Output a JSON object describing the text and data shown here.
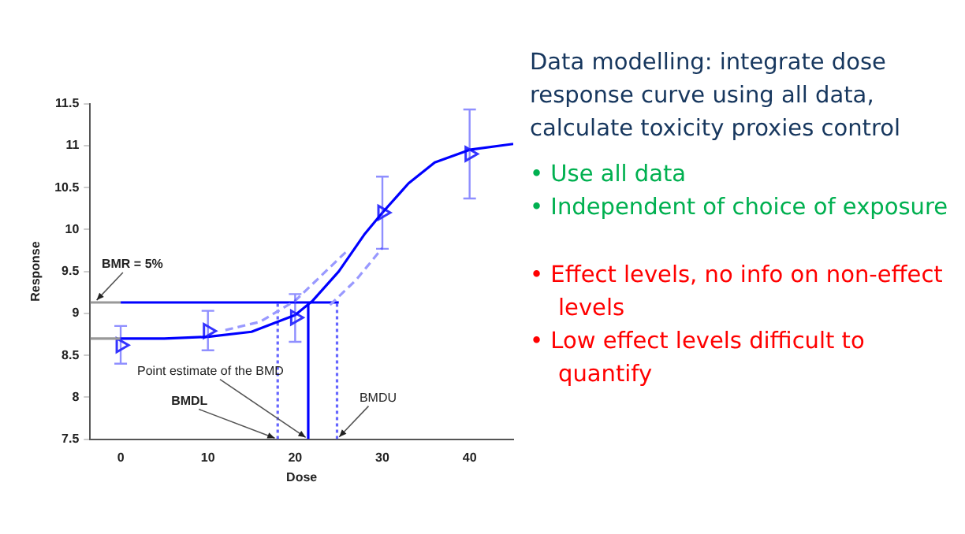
{
  "chart_data": [
    {
      "type": "scatter",
      "xlabel": "Dose",
      "ylabel": "Response",
      "xlim": [
        -3.5,
        45
      ],
      "xticks": [
        0,
        10,
        20,
        30,
        40
      ],
      "ylim": [
        7.5,
        11.5
      ],
      "yticks": [
        7.5,
        8,
        8.5,
        9,
        9.5,
        10,
        10.5,
        11,
        11.5
      ],
      "grid": false,
      "legend": false,
      "series": [
        {
          "type": "line",
          "color": "#9999ff",
          "line_style": "dashed",
          "marker": "none",
          "x": [
            12,
            16,
            20,
            23,
            26
          ],
          "values": [
            8.8,
            8.9,
            9.15,
            9.45,
            9.75
          ]
        },
        {
          "type": "line",
          "color": "#9999ff",
          "line_style": "dashed",
          "marker": "none",
          "x": [
            24,
            27,
            30
          ],
          "values": [
            9.1,
            9.4,
            9.78
          ]
        },
        {
          "type": "line",
          "color": "#0000ff",
          "line_style": "solid",
          "marker": "none",
          "x": [
            0,
            5,
            10,
            15,
            20,
            22,
            25,
            28,
            30,
            33,
            36,
            40,
            45
          ],
          "values": [
            8.7,
            8.7,
            8.72,
            8.78,
            8.98,
            9.15,
            9.5,
            9.95,
            10.2,
            10.55,
            10.8,
            10.95,
            11.02
          ]
        },
        {
          "type": "line",
          "color": "#999999",
          "line_style": "solid",
          "marker": "none",
          "x": [
            -3.5,
            0
          ],
          "values": [
            8.7,
            8.7
          ]
        },
        {
          "type": "line",
          "color": "#999999",
          "line_style": "solid",
          "marker": "none",
          "x": [
            -3.5,
            0
          ],
          "values": [
            9.13,
            9.13
          ]
        },
        {
          "type": "line",
          "color": "#0000ff",
          "line_style": "solid",
          "marker": "none",
          "x": [
            0,
            25
          ],
          "values": [
            9.13,
            9.13
          ]
        },
        {
          "type": "line",
          "color": "#0000ff",
          "line_style": "solid",
          "marker": "none",
          "x": [
            21.5,
            21.5
          ],
          "values": [
            7.5,
            9.13
          ]
        },
        {
          "type": "line",
          "color": "#6666ff",
          "line_style": "dotted",
          "marker": "none",
          "x": [
            18,
            18
          ],
          "values": [
            7.5,
            9.13
          ]
        },
        {
          "type": "line",
          "color": "#6666ff",
          "line_style": "dotted",
          "marker": "none",
          "x": [
            24.8,
            24.8
          ],
          "values": [
            7.5,
            9.13
          ]
        },
        {
          "type": "scatter",
          "color": "#3333ff",
          "marker": "triangle",
          "x": [
            0,
            10,
            20,
            30,
            40
          ],
          "values": [
            8.62,
            8.79,
            8.95,
            10.2,
            10.9
          ],
          "errors": [
            [
              8.4,
              8.85
            ],
            [
              8.56,
              9.03
            ],
            [
              8.66,
              9.23
            ],
            [
              9.77,
              10.63
            ],
            [
              10.37,
              11.43
            ]
          ]
        }
      ],
      "annotations": [
        {
          "text": "BMR = 5%",
          "x": -3,
          "y": 9.13
        },
        {
          "text": "Point estimate of the BMD",
          "x": 21.5,
          "y": 7.5
        },
        {
          "text": "BMDL",
          "x": 18,
          "y": 7.5
        },
        {
          "text": "BMDU",
          "x": 24.8,
          "y": 7.5
        }
      ]
    },
    {
      "type": "other",
      "annotations": [
        "Data modelling: integrate dose response curve using all data, calculate toxicity proxies control",
        "• Use all data",
        "• Independent of choice of exposure",
        "• Effect levels, no info on non-effect levels",
        "• Low effect levels difficult to quantify"
      ]
    }
  ]
}
